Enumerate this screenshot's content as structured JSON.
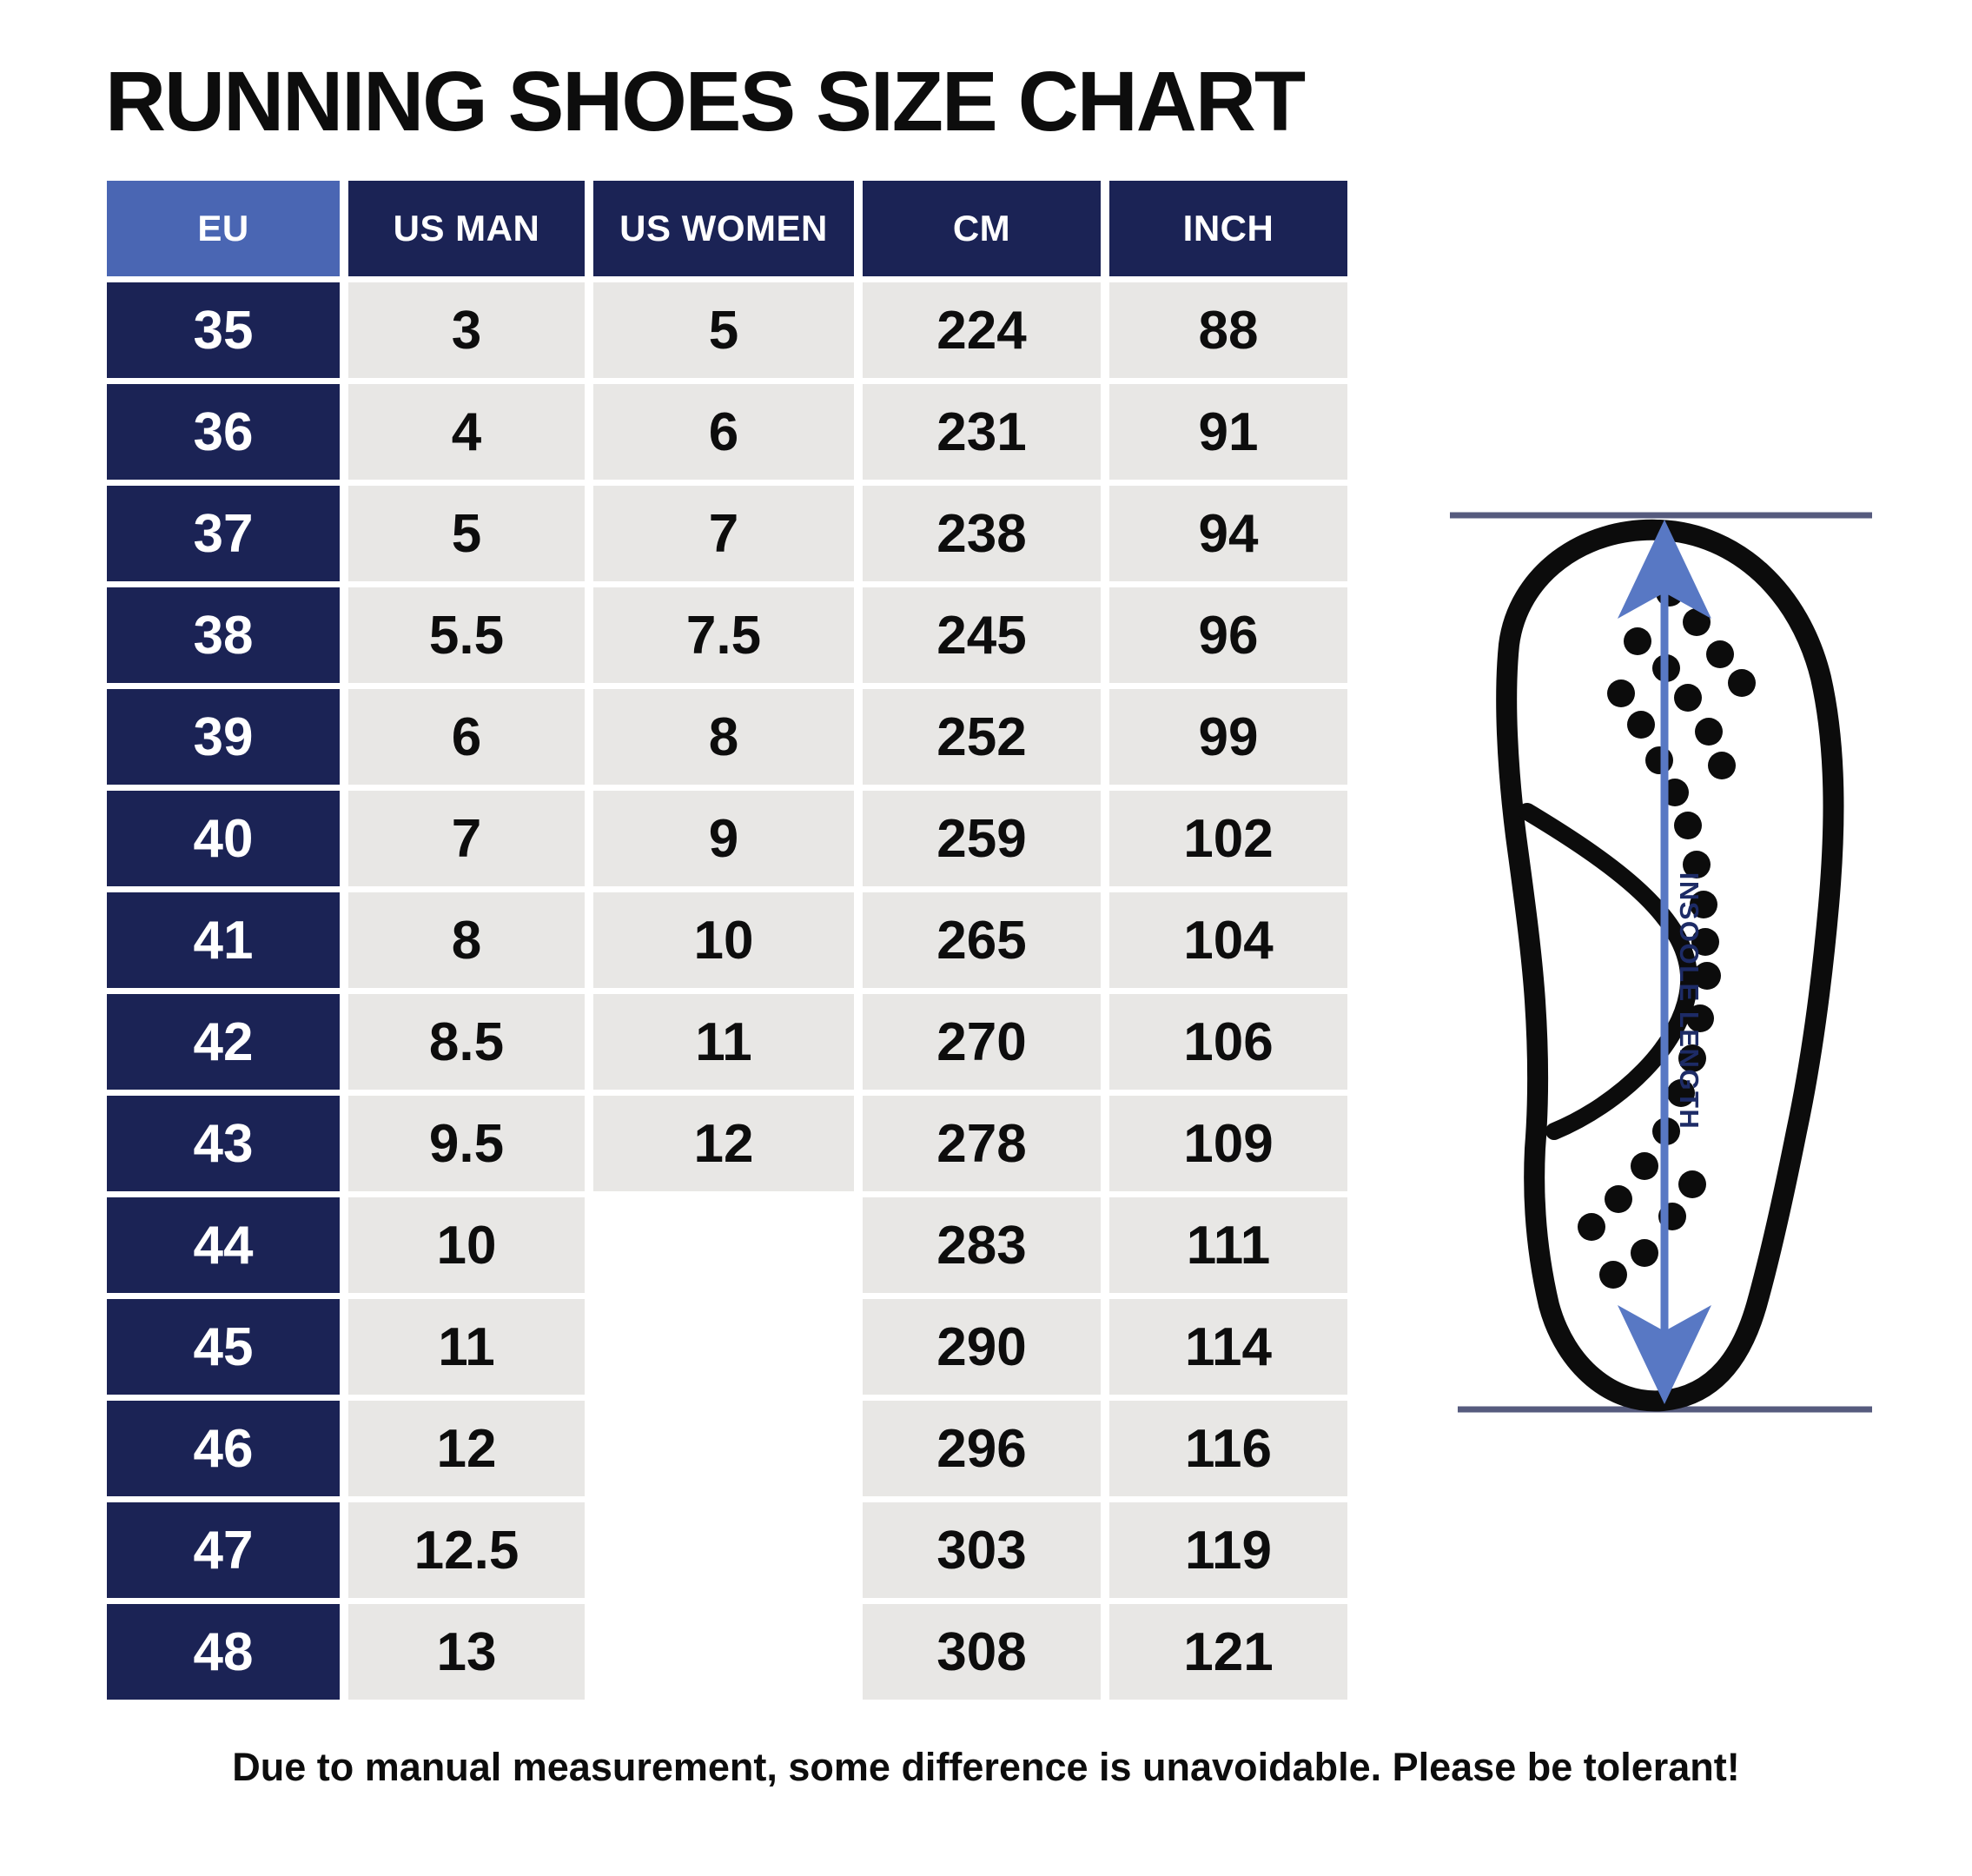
{
  "title": "RUNNING SHOES SIZE CHART",
  "footer": "Due to manual measurement, some difference is unavoidable. Please be tolerant!",
  "chart_data": {
    "type": "table",
    "title": "RUNNING SHOES SIZE CHART",
    "columns": [
      "EU",
      "US MAN",
      "US WOMEN",
      "CM",
      "INCH"
    ],
    "rows": [
      [
        "35",
        "3",
        "5",
        "224",
        "88"
      ],
      [
        "36",
        "4",
        "6",
        "231",
        "91"
      ],
      [
        "37",
        "5",
        "7",
        "238",
        "94"
      ],
      [
        "38",
        "5.5",
        "7.5",
        "245",
        "96"
      ],
      [
        "39",
        "6",
        "8",
        "252",
        "99"
      ],
      [
        "40",
        "7",
        "9",
        "259",
        "102"
      ],
      [
        "41",
        "8",
        "10",
        "265",
        "104"
      ],
      [
        "42",
        "8.5",
        "11",
        "270",
        "106"
      ],
      [
        "43",
        "9.5",
        "12",
        "278",
        "109"
      ],
      [
        "44",
        "10",
        "",
        "283",
        "111"
      ],
      [
        "45",
        "11",
        "",
        "290",
        "114"
      ],
      [
        "46",
        "12",
        "",
        "296",
        "116"
      ],
      [
        "47",
        "12.5",
        "",
        "303",
        "119"
      ],
      [
        "48",
        "13",
        "",
        "308",
        "121"
      ]
    ]
  },
  "diagram": {
    "label": "INSOOLE LENGTH"
  },
  "colors": {
    "header_blue": "#4a66b3",
    "navy": "#1b2355",
    "cell_gray": "#e8e7e5",
    "arrow_blue": "#5878c4",
    "rule_slate": "#565b7e",
    "label_navy": "#1d2b66",
    "text_black": "#0d0d0d"
  }
}
